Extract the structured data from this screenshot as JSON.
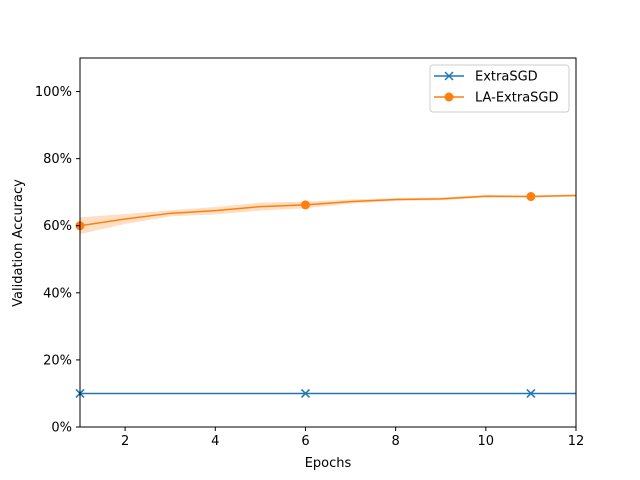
{
  "chart_data": {
    "type": "line",
    "title": "",
    "xlabel": "Epochs",
    "ylabel": "Validation Accuracy",
    "xlim": [
      1,
      12
    ],
    "ylim": [
      0,
      1.1
    ],
    "x": [
      1,
      2,
      3,
      4,
      5,
      6,
      7,
      8,
      9,
      10,
      11,
      12
    ],
    "xticks": [
      2,
      4,
      6,
      8,
      10,
      12
    ],
    "xtick_labels": [
      "2",
      "4",
      "6",
      "8",
      "10",
      "12"
    ],
    "yticks": [
      0,
      0.2,
      0.4,
      0.6,
      0.8,
      1.0
    ],
    "ytick_labels": [
      "0%",
      "20%",
      "40%",
      "60%",
      "80%",
      "100%"
    ],
    "grid": false,
    "legend_position": "top-right",
    "series": [
      {
        "name": "ExtraSGD",
        "color": "#1f77b4",
        "marker": "x",
        "marker_every": [
          1,
          6,
          11
        ],
        "values": [
          0.1,
          0.1,
          0.1,
          0.1,
          0.1,
          0.1,
          0.1,
          0.1,
          0.1,
          0.1,
          0.1,
          0.1
        ]
      },
      {
        "name": "LA-ExtraSGD",
        "color": "#ff7f0e",
        "marker": "o",
        "marker_every": [
          1,
          6,
          11
        ],
        "values": [
          0.6,
          0.62,
          0.637,
          0.645,
          0.657,
          0.662,
          0.672,
          0.678,
          0.68,
          0.688,
          0.687,
          0.69
        ],
        "band_lower": [
          0.575,
          0.605,
          0.628,
          0.634,
          0.645,
          0.652,
          0.666,
          0.674,
          0.676,
          0.684,
          0.684,
          0.687
        ],
        "band_upper": [
          0.625,
          0.635,
          0.646,
          0.656,
          0.669,
          0.672,
          0.678,
          0.682,
          0.684,
          0.692,
          0.69,
          0.693
        ]
      }
    ]
  }
}
